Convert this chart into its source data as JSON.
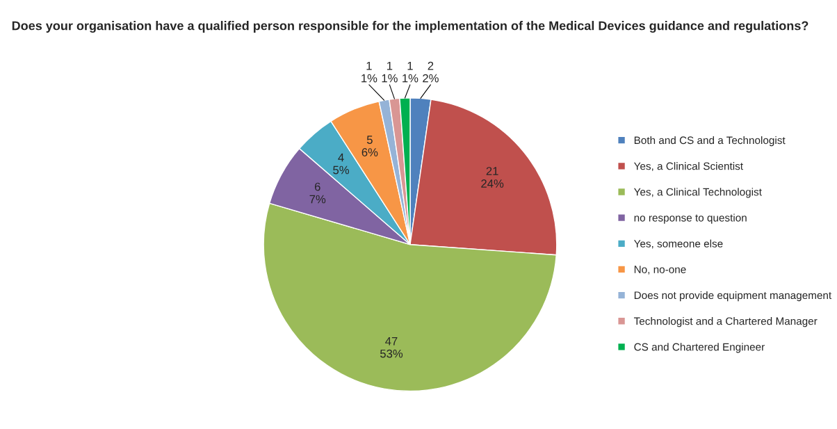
{
  "chart_data": {
    "type": "pie",
    "title": "Does your organisation have a qualified person responsible for the implementation of the Medical Devices guidance and regulations?",
    "categories": [
      "Both and CS and a Technologist",
      "Yes, a Clinical Scientist",
      "Yes, a Clinical Technologist",
      "no response to question",
      "Yes, someone else",
      "No, no-one",
      "Does not provide equipment management",
      "Technologist and a Chartered Manager",
      "CS and Chartered Engineer"
    ],
    "values": [
      2,
      21,
      47,
      6,
      4,
      5,
      1,
      1,
      1
    ],
    "value_labels": [
      "2\n2%",
      "21\n24%",
      "47\n53%",
      "6\n7%",
      "4\n5%",
      "5\n6%",
      "1\n1%",
      "1\n1%",
      "1\n1%"
    ],
    "colors": [
      "#4f81bd",
      "#c0504d",
      "#9bbb59",
      "#8064a2",
      "#4bacc6",
      "#f79646",
      "#95b3d7",
      "#d99694",
      "#00b050"
    ],
    "legend": "right"
  }
}
